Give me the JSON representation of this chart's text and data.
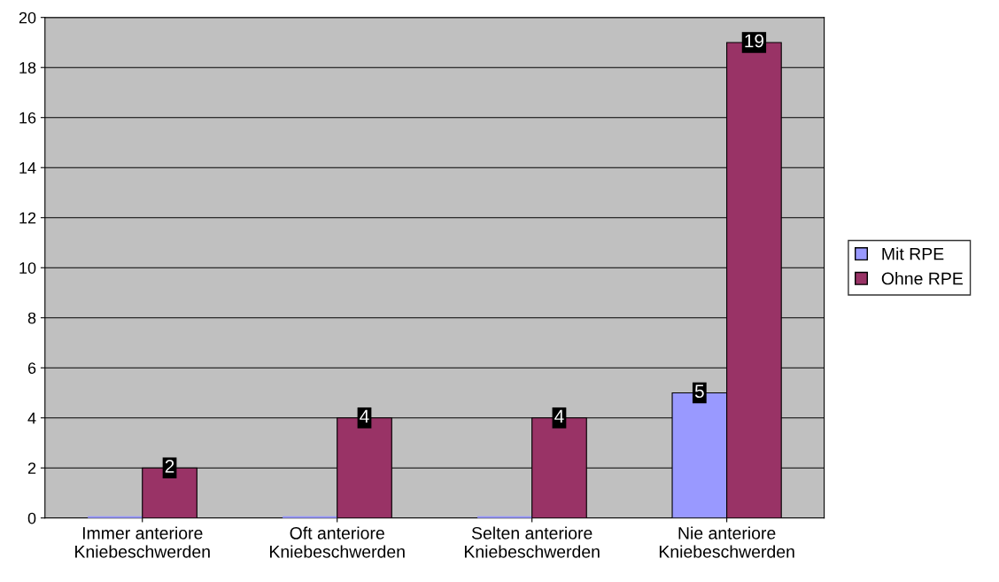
{
  "chart_data": {
    "type": "bar",
    "categories": [
      "Immer anteriore Kniebeschwerden",
      "Oft anteriore Kniebeschwerden",
      "Selten anteriore Kniebeschwerden",
      "Nie anteriore Kniebeschwerden"
    ],
    "series": [
      {
        "name": "Mit RPE",
        "color": "#9999ff",
        "values": [
          0,
          0,
          0,
          5
        ],
        "value_labels": [
          null,
          null,
          null,
          "5"
        ]
      },
      {
        "name": "Ohne RPE",
        "color": "#993366",
        "values": [
          2,
          4,
          4,
          19
        ],
        "value_labels": [
          "2",
          "4",
          "4",
          "19"
        ]
      }
    ],
    "ylim": [
      0,
      20
    ],
    "yticks": [
      0,
      2,
      4,
      6,
      8,
      10,
      12,
      14,
      16,
      18,
      20
    ],
    "grid": "y",
    "legend": "right"
  }
}
